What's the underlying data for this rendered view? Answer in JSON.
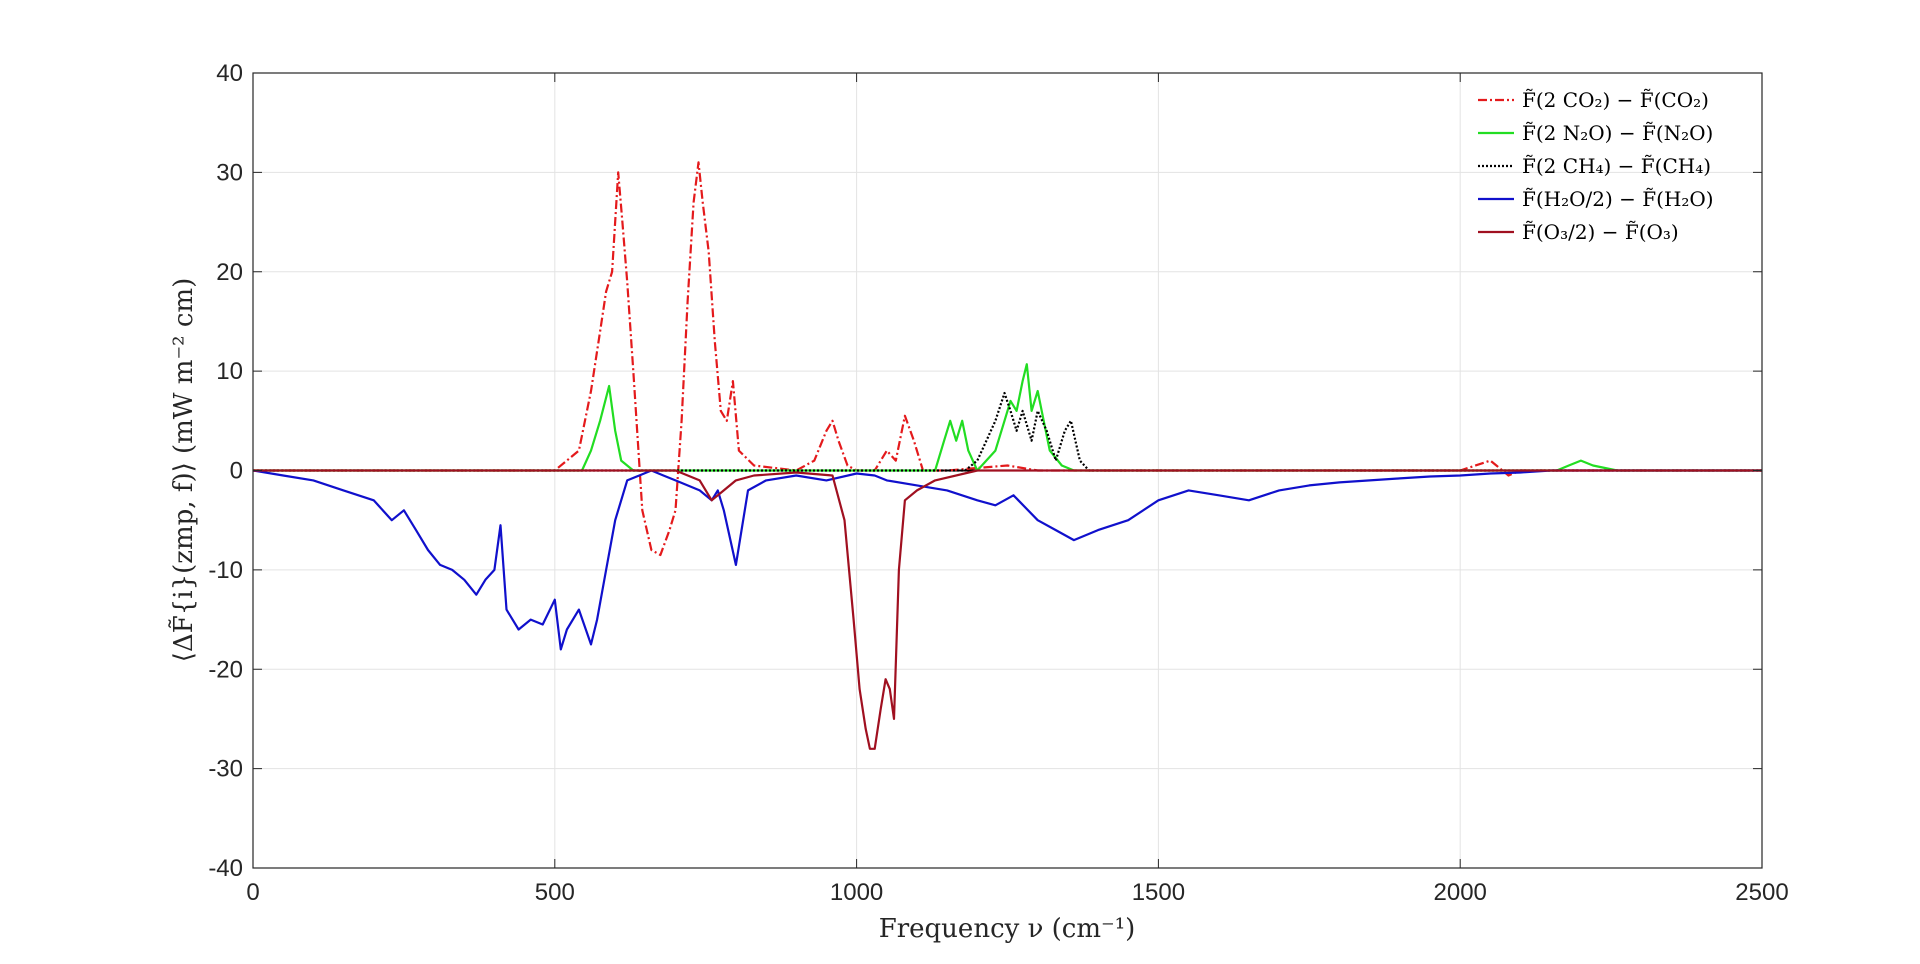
{
  "chart_data": {
    "type": "line",
    "xlabel": "Frequency ν (cm⁻¹)",
    "ylabel": "⟨ΔF̃{i}(zmp, f)⟩   (mW m⁻² cm)",
    "xlim": [
      0,
      2500
    ],
    "ylim": [
      -40,
      40
    ],
    "xticks": [
      "0",
      "500",
      "1000",
      "1500",
      "2000",
      "2500"
    ],
    "yticks": [
      "40",
      "30",
      "20",
      "10",
      "0",
      "-10",
      "-20",
      "-30",
      "-40"
    ],
    "grid": true,
    "legend_position": "top-right",
    "series": [
      {
        "name": "F̃(2 CO₂) − F̃(CO₂)",
        "color": "#e41a1c",
        "dash": "dashdot",
        "x": [
          0,
          500,
          540,
          560,
          575,
          585,
          595,
          605,
          612,
          620,
          630,
          645,
          660,
          675,
          690,
          700,
          710,
          720,
          730,
          738,
          745,
          755,
          765,
          775,
          785,
          795,
          805,
          830,
          900,
          930,
          950,
          960,
          970,
          985,
          1000,
          1030,
          1050,
          1065,
          1080,
          1095,
          1110,
          1150,
          1250,
          1300,
          1400,
          2000,
          2050,
          2060,
          2080,
          2100,
          2500
        ],
        "y": [
          0,
          0,
          2,
          8,
          14,
          18,
          20,
          30,
          25,
          19,
          10,
          -4,
          -8,
          -8.5,
          -6,
          -4,
          5,
          17,
          27,
          31,
          27,
          22,
          13,
          6,
          5,
          9,
          2,
          0.5,
          0,
          1,
          4,
          5,
          3,
          0.5,
          0,
          0,
          2,
          1,
          5.5,
          3,
          0,
          0,
          0.5,
          0,
          0,
          0,
          1,
          0.5,
          -0.5,
          0,
          0
        ]
      },
      {
        "name": "F̃(2 N₂O) − F̃(N₂O)",
        "color": "#22dd22",
        "dash": "solid",
        "x": [
          0,
          545,
          560,
          575,
          590,
          600,
          610,
          630,
          1130,
          1145,
          1155,
          1165,
          1175,
          1185,
          1200,
          1230,
          1245,
          1255,
          1265,
          1275,
          1282,
          1290,
          1300,
          1310,
          1320,
          1340,
          1360,
          1400,
          2160,
          2180,
          2200,
          2220,
          2260,
          2500
        ],
        "y": [
          0,
          0,
          2,
          5,
          8.5,
          4,
          1,
          0,
          0,
          3,
          5,
          3,
          5,
          2,
          0,
          2,
          5,
          7,
          6,
          9,
          10.7,
          6,
          8,
          5,
          2,
          0.5,
          0,
          0,
          0,
          0.5,
          1,
          0.5,
          0,
          0
        ]
      },
      {
        "name": "F̃(2 CH₄) − F̃(CH₄)",
        "color": "#000000",
        "dash": "dotted",
        "x": [
          0,
          1180,
          1200,
          1215,
          1230,
          1245,
          1255,
          1265,
          1275,
          1290,
          1300,
          1315,
          1330,
          1345,
          1355,
          1370,
          1385,
          2500
        ],
        "y": [
          0,
          0,
          1,
          3,
          5,
          7.8,
          6,
          4,
          6,
          3,
          6,
          4,
          1,
          4,
          5,
          1,
          0,
          0
        ]
      },
      {
        "name": "F̃(H₂O/2) − F̃(H₂O)",
        "color": "#1010cc",
        "dash": "solid",
        "x": [
          0,
          50,
          100,
          150,
          200,
          230,
          250,
          270,
          290,
          310,
          330,
          350,
          370,
          385,
          400,
          410,
          420,
          440,
          460,
          480,
          500,
          510,
          520,
          540,
          560,
          570,
          585,
          600,
          620,
          640,
          660,
          680,
          700,
          740,
          760,
          770,
          780,
          800,
          820,
          850,
          900,
          950,
          1000,
          1030,
          1050,
          1100,
          1150,
          1200,
          1230,
          1260,
          1300,
          1330,
          1360,
          1400,
          1450,
          1500,
          1550,
          1600,
          1650,
          1700,
          1750,
          1800,
          1850,
          1900,
          1950,
          2000,
          2050,
          2100,
          2150,
          2200,
          2300,
          2400,
          2500
        ],
        "y": [
          0,
          -0.5,
          -1,
          -2,
          -3,
          -5,
          -4,
          -6,
          -8,
          -9.5,
          -10,
          -11,
          -12.5,
          -11,
          -10,
          -5.5,
          -14,
          -16,
          -15,
          -15.5,
          -13,
          -18,
          -16,
          -14,
          -17.5,
          -15,
          -10,
          -5,
          -1,
          -0.5,
          0,
          -0.5,
          -1,
          -2,
          -3,
          -2,
          -4,
          -9.5,
          -2,
          -1,
          -0.5,
          -1,
          -0.3,
          -0.5,
          -1,
          -1.5,
          -2,
          -3,
          -3.5,
          -2.5,
          -5,
          -6,
          -7,
          -6,
          -5,
          -3,
          -2,
          -2.5,
          -3,
          -2,
          -1.5,
          -1.2,
          -1,
          -0.8,
          -0.6,
          -0.5,
          -0.3,
          -0.2,
          0,
          0,
          0,
          0,
          0
        ]
      },
      {
        "name": "F̃(O₃/2) − F̃(O₃)",
        "color": "#a01020",
        "dash": "solid",
        "x": [
          0,
          600,
          650,
          700,
          740,
          760,
          780,
          800,
          830,
          900,
          960,
          980,
          995,
          1005,
          1015,
          1022,
          1030,
          1040,
          1048,
          1055,
          1062,
          1070,
          1080,
          1100,
          1130,
          1200,
          2500
        ],
        "y": [
          0,
          0,
          0,
          0,
          -1,
          -3,
          -2,
          -1,
          -0.5,
          -0.2,
          -0.5,
          -5,
          -15,
          -22,
          -26,
          -28,
          -28,
          -24,
          -21,
          -22,
          -25,
          -10,
          -3,
          -2,
          -1,
          0,
          0
        ]
      }
    ]
  }
}
